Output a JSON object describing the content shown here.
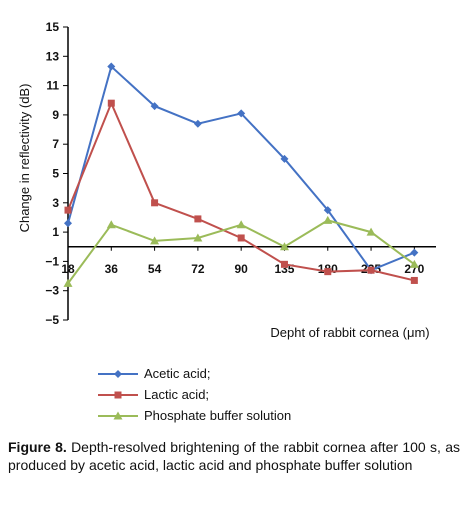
{
  "chart_data": {
    "type": "line",
    "categories": [
      "18",
      "36",
      "54",
      "72",
      "90",
      "135",
      "180",
      "225",
      "270"
    ],
    "ylabel": "Change in reflectivity (dB)",
    "xlabel": "Depht of rabbit cornea (μm)",
    "ylim": [
      -5,
      15
    ],
    "yticks": [
      "15",
      "13",
      "11",
      "9",
      "7",
      "5",
      "3",
      "1",
      "−1",
      "−3",
      "−5"
    ],
    "series": [
      {
        "name": "Acetic acid;",
        "color": "#4472C4",
        "marker": "diamond",
        "values": [
          1.6,
          12.3,
          9.6,
          8.4,
          9.1,
          6.0,
          2.5,
          -1.6,
          -0.4
        ]
      },
      {
        "name": "Lactic acid;",
        "color": "#C0504D",
        "marker": "square",
        "values": [
          2.5,
          9.8,
          3.0,
          1.9,
          0.6,
          -1.2,
          -1.7,
          -1.6,
          -2.3
        ]
      },
      {
        "name": "Phosphate buffer solution",
        "color": "#9BBB59",
        "marker": "triangle",
        "values": [
          -2.5,
          1.5,
          0.4,
          0.6,
          1.5,
          0.0,
          1.8,
          1.0,
          -1.2
        ]
      }
    ],
    "legend_position": "bottom"
  },
  "caption": {
    "label": "Figure 8.",
    "text": " Depth-resolved brightening of the rabbit cornea after 100 s, as produced by acetic acid, lactic acid and phosphate buffer solution"
  }
}
